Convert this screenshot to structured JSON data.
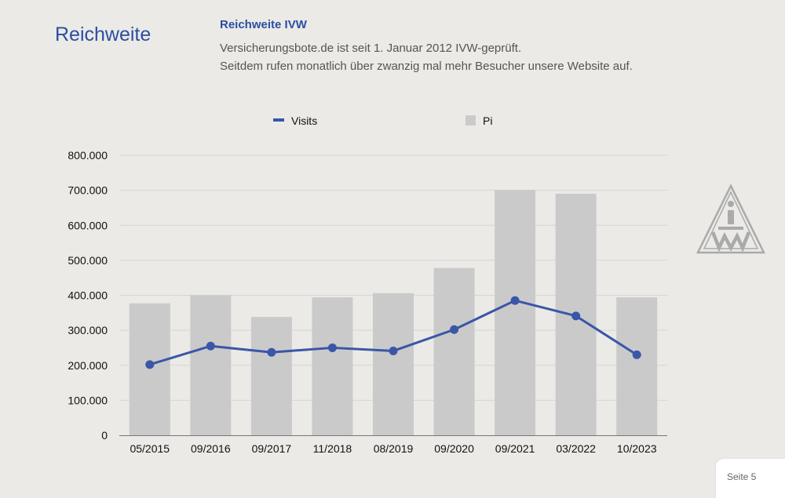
{
  "header": {
    "title": "Reichweite",
    "subheading": "Reichweite IVW",
    "lines": [
      "Versicherungsbote.de ist seit 1. Januar 2012 IVW-geprüft.",
      "Seitdem rufen monatlich über zwanzig mal mehr Besucher unsere Website auf."
    ]
  },
  "logo": {
    "text": "ivw"
  },
  "footer": {
    "page_label": "Seite 5"
  },
  "colors": {
    "background": "#ebeae6",
    "accent": "#2a4fa3",
    "bar": "#cacaca",
    "line": "#3a56a7"
  },
  "chart_data": {
    "type": "bar",
    "categories": [
      "05/2015",
      "09/2016",
      "09/2017",
      "11/2018",
      "08/2019",
      "09/2020",
      "09/2021",
      "03/2022",
      "10/2023"
    ],
    "series": [
      {
        "name": "Visits",
        "type": "line",
        "values": [
          202000,
          255000,
          237000,
          250000,
          241000,
          302000,
          385000,
          341000,
          230000
        ]
      },
      {
        "name": "Pi",
        "type": "bar",
        "values": [
          377000,
          400000,
          338000,
          394000,
          406000,
          478000,
          701000,
          690000,
          394000
        ]
      }
    ],
    "yticks": [
      "0",
      "100.000",
      "200.000",
      "300.000",
      "400.000",
      "500.000",
      "600.000",
      "700.000",
      "800.000"
    ],
    "ylim": [
      0,
      800000
    ],
    "grid": true,
    "legend_position": "top"
  }
}
